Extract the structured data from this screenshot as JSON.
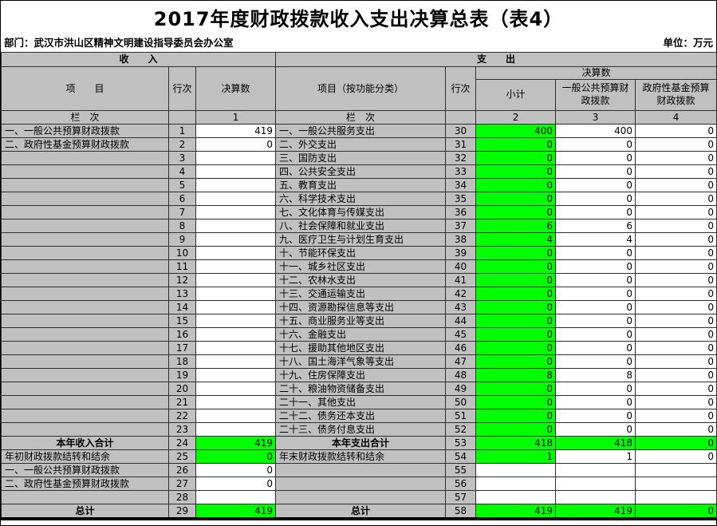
{
  "title": "2017年度财政拨款收入支出决算总表（表4）",
  "meta": {
    "department": "部门：武汉市洪山区精神文明建设指导委员会办公室",
    "unit": "单位：万元"
  },
  "table_header": {
    "income_section": "收　　入",
    "expense_section": "支　　出",
    "income_item": "项　　目",
    "income_rowno": "行次",
    "income_amount": "决算数",
    "expense_item": "项目（按功能分类）",
    "expense_rowno": "行次",
    "expense_amount": "决算数",
    "subtotal": "小计",
    "general_budget": "一般公共预算财政拨款",
    "gov_fund": "政府性基金预算财政拨款",
    "lanci_income": "栏　次",
    "lanci_expense": "栏　次",
    "col1": "1",
    "col2": "2",
    "col3": "3",
    "col4": "4"
  },
  "colors": {
    "header_gray": "#c0c0c0",
    "highlight_green": "#00ff00"
  },
  "rows": [
    {
      "c": [
        "一、一般公共预算财政拨款",
        "1",
        "419",
        "一、一般公共服务支出",
        "30",
        "400",
        "400",
        "0"
      ],
      "g": [
        0,
        0,
        0,
        0,
        0,
        1,
        0,
        0
      ],
      "b": 0
    },
    {
      "c": [
        "二、政府性基金预算财政拨款",
        "2",
        "0",
        "二、外交支出",
        "31",
        "0",
        "0",
        "0"
      ],
      "g": [
        0,
        0,
        0,
        0,
        0,
        1,
        0,
        0
      ],
      "b": 0
    },
    {
      "c": [
        "",
        "3",
        "",
        "三、国防支出",
        "32",
        "0",
        "0",
        "0"
      ],
      "g": [
        0,
        0,
        0,
        0,
        0,
        1,
        0,
        0
      ],
      "b": 0
    },
    {
      "c": [
        "",
        "4",
        "",
        "四、公共安全支出",
        "33",
        "0",
        "0",
        "0"
      ],
      "g": [
        0,
        0,
        0,
        0,
        0,
        1,
        0,
        0
      ],
      "b": 0
    },
    {
      "c": [
        "",
        "5",
        "",
        "五、教育支出",
        "34",
        "0",
        "0",
        "0"
      ],
      "g": [
        0,
        0,
        0,
        0,
        0,
        1,
        0,
        0
      ],
      "b": 0
    },
    {
      "c": [
        "",
        "6",
        "",
        "六、科学技术支出",
        "35",
        "0",
        "0",
        "0"
      ],
      "g": [
        0,
        0,
        0,
        0,
        0,
        1,
        0,
        0
      ],
      "b": 0
    },
    {
      "c": [
        "",
        "7",
        "",
        "七、文化体育与传媒支出",
        "36",
        "0",
        "0",
        "0"
      ],
      "g": [
        0,
        0,
        0,
        0,
        0,
        1,
        0,
        0
      ],
      "b": 0
    },
    {
      "c": [
        "",
        "8",
        "",
        "八、社会保障和就业支出",
        "37",
        "6",
        "6",
        "0"
      ],
      "g": [
        0,
        0,
        0,
        0,
        0,
        1,
        0,
        0
      ],
      "b": 0
    },
    {
      "c": [
        "",
        "9",
        "",
        "九、医疗卫生与计划生育支出",
        "38",
        "4",
        "4",
        "0"
      ],
      "g": [
        0,
        0,
        0,
        0,
        0,
        1,
        0,
        0
      ],
      "b": 0
    },
    {
      "c": [
        "",
        "10",
        "",
        "十、节能环保支出",
        "39",
        "0",
        "0",
        "0"
      ],
      "g": [
        0,
        0,
        0,
        0,
        0,
        1,
        0,
        0
      ],
      "b": 0
    },
    {
      "c": [
        "",
        "11",
        "",
        "十一、城乡社区支出",
        "40",
        "0",
        "0",
        "0"
      ],
      "g": [
        0,
        0,
        0,
        0,
        0,
        1,
        0,
        0
      ],
      "b": 0
    },
    {
      "c": [
        "",
        "12",
        "",
        "十二、农林水支出",
        "41",
        "0",
        "0",
        "0"
      ],
      "g": [
        0,
        0,
        0,
        0,
        0,
        1,
        0,
        0
      ],
      "b": 0
    },
    {
      "c": [
        "",
        "13",
        "",
        "十三、交通运输支出",
        "42",
        "0",
        "0",
        "0"
      ],
      "g": [
        0,
        0,
        0,
        0,
        0,
        1,
        0,
        0
      ],
      "b": 0
    },
    {
      "c": [
        "",
        "14",
        "",
        "十四、资源勘探信息等支出",
        "43",
        "0",
        "0",
        "0"
      ],
      "g": [
        0,
        0,
        0,
        0,
        0,
        1,
        0,
        0
      ],
      "b": 0
    },
    {
      "c": [
        "",
        "15",
        "",
        "十五、商业服务业等支出",
        "44",
        "0",
        "0",
        "0"
      ],
      "g": [
        0,
        0,
        0,
        0,
        0,
        1,
        0,
        0
      ],
      "b": 0
    },
    {
      "c": [
        "",
        "16",
        "",
        "十六、金融支出",
        "45",
        "0",
        "0",
        "0"
      ],
      "g": [
        0,
        0,
        0,
        0,
        0,
        1,
        0,
        0
      ],
      "b": 0
    },
    {
      "c": [
        "",
        "17",
        "",
        "十七、援助其他地区支出",
        "46",
        "0",
        "0",
        "0"
      ],
      "g": [
        0,
        0,
        0,
        0,
        0,
        1,
        0,
        0
      ],
      "b": 0
    },
    {
      "c": [
        "",
        "18",
        "",
        "十八、国土海洋气象等支出",
        "47",
        "0",
        "0",
        "0"
      ],
      "g": [
        0,
        0,
        0,
        0,
        0,
        1,
        0,
        0
      ],
      "b": 0
    },
    {
      "c": [
        "",
        "19",
        "",
        "十九、住房保障支出",
        "48",
        "8",
        "8",
        "0"
      ],
      "g": [
        0,
        0,
        0,
        0,
        0,
        1,
        0,
        0
      ],
      "b": 0
    },
    {
      "c": [
        "",
        "20",
        "",
        "二十、粮油物资储备支出",
        "49",
        "0",
        "0",
        "0"
      ],
      "g": [
        0,
        0,
        0,
        0,
        0,
        1,
        0,
        0
      ],
      "b": 0
    },
    {
      "c": [
        "",
        "21",
        "",
        "二十一、其他支出",
        "50",
        "0",
        "0",
        "0"
      ],
      "g": [
        0,
        0,
        0,
        0,
        0,
        1,
        0,
        0
      ],
      "b": 0
    },
    {
      "c": [
        "",
        "22",
        "",
        "二十二、债务还本支出",
        "51",
        "0",
        "0",
        "0"
      ],
      "g": [
        0,
        0,
        0,
        0,
        0,
        1,
        0,
        0
      ],
      "b": 0
    },
    {
      "c": [
        "",
        "23",
        "",
        "二十三、债务付息支出",
        "52",
        "0",
        "0",
        "0"
      ],
      "g": [
        0,
        0,
        0,
        0,
        0,
        1,
        0,
        0
      ],
      "b": 0
    },
    {
      "c": [
        "本年收入合计",
        "24",
        "419",
        "本年支出合计",
        "53",
        "418",
        "418",
        "0"
      ],
      "g": [
        0,
        0,
        1,
        0,
        0,
        1,
        1,
        1
      ],
      "b": 1
    },
    {
      "c": [
        "年初财政拨款结转和结余",
        "25",
        "0",
        "年末财政拨款结转和结余",
        "54",
        "1",
        "1",
        "0"
      ],
      "g": [
        0,
        0,
        1,
        0,
        0,
        1,
        0,
        0
      ],
      "b": 0
    },
    {
      "c": [
        "一、一般公共预算财政拨款",
        "26",
        "0",
        "",
        "55",
        "",
        "",
        ""
      ],
      "g": [
        0,
        0,
        0,
        0,
        0,
        0,
        0,
        0
      ],
      "b": 0
    },
    {
      "c": [
        "二、政府性基金预算财政拨款",
        "27",
        "0",
        "",
        "56",
        "",
        "",
        ""
      ],
      "g": [
        0,
        0,
        0,
        0,
        0,
        0,
        0,
        0
      ],
      "b": 0
    },
    {
      "c": [
        "",
        "28",
        "",
        "",
        "57",
        "",
        "",
        ""
      ],
      "g": [
        0,
        0,
        0,
        0,
        0,
        0,
        0,
        0
      ],
      "b": 0
    },
    {
      "c": [
        "总计",
        "29",
        "419",
        "总计",
        "58",
        "419",
        "419",
        "0"
      ],
      "g": [
        0,
        0,
        1,
        0,
        0,
        1,
        1,
        1
      ],
      "b": 1
    }
  ]
}
